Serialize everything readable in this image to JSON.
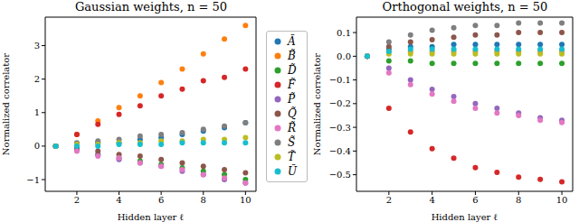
{
  "chart_data": [
    {
      "type": "scatter",
      "title": "Gaussian weights, n = 50",
      "x_label": "Hidden layer ℓ",
      "y_label": "Normalized correlator",
      "x": [
        1,
        2,
        3,
        4,
        5,
        6,
        7,
        8,
        9,
        10
      ],
      "xlim": [
        0.5,
        10.5
      ],
      "xticks": [
        2,
        4,
        6,
        8,
        10
      ],
      "ylim": [
        -1.35,
        3.85
      ],
      "yticks": [
        {
          "value": -1,
          "label": "−1"
        },
        0,
        1,
        2,
        3
      ],
      "legend": "right",
      "marker": "circle",
      "series": [
        {
          "name": "Ã",
          "color": "#1f77b4",
          "values": [
            0,
            0.05,
            0.1,
            0.1,
            0.2,
            0.25,
            0.35,
            0.45,
            0.55,
            0.7
          ]
        },
        {
          "name": "B̃",
          "color": "#ff7f0e",
          "values": [
            0,
            0.35,
            0.75,
            1.15,
            1.5,
            1.9,
            2.3,
            2.75,
            3.2,
            3.6
          ]
        },
        {
          "name": "D̃",
          "color": "#2ca02c",
          "values": [
            0,
            -0.1,
            -0.25,
            -0.35,
            -0.45,
            -0.55,
            -0.65,
            -0.75,
            -0.85,
            -1.0
          ]
        },
        {
          "name": "F̃",
          "color": "#d62728",
          "values": [
            0,
            0.35,
            0.65,
            0.95,
            1.2,
            1.5,
            1.7,
            1.95,
            2.05,
            2.3
          ]
        },
        {
          "name": "P̃",
          "color": "#9467bd",
          "values": [
            0,
            -0.1,
            -0.25,
            -0.4,
            -0.5,
            -0.6,
            -0.75,
            -0.85,
            -1.0,
            -1.1
          ]
        },
        {
          "name": "Q̃",
          "color": "#8c564b",
          "values": [
            0,
            -0.05,
            -0.15,
            -0.25,
            -0.3,
            -0.4,
            -0.5,
            -0.6,
            -0.7,
            -0.8
          ]
        },
        {
          "name": "R̃",
          "color": "#e377c2",
          "values": [
            0,
            -0.15,
            -0.3,
            -0.35,
            -0.5,
            -0.6,
            -0.7,
            -0.85,
            -0.95,
            -1.1
          ]
        },
        {
          "name": "S̃",
          "color": "#7f7f7f",
          "values": [
            0,
            0.1,
            0.15,
            0.2,
            0.3,
            0.35,
            0.4,
            0.5,
            0.6,
            0.7
          ]
        },
        {
          "name": "T̃",
          "color": "#bcbd22",
          "values": [
            0,
            0.05,
            0.05,
            0.1,
            0.1,
            0.15,
            0.15,
            0.2,
            0.2,
            0.25
          ]
        },
        {
          "name": "Ũ",
          "color": "#17becf",
          "values": [
            0,
            0.0,
            0.0,
            0.05,
            0.05,
            0.05,
            0.1,
            0.1,
            0.1,
            0.1
          ]
        }
      ]
    },
    {
      "type": "scatter",
      "title": "Orthogonal weights, n = 50",
      "x_label": "Hidden layer ℓ",
      "y_label": "Normalized correlator",
      "x": [
        1,
        2,
        3,
        4,
        5,
        6,
        7,
        8,
        9,
        10
      ],
      "xlim": [
        0.5,
        10.5
      ],
      "xticks": [
        2,
        4,
        6,
        8,
        10
      ],
      "ylim": [
        -0.57,
        0.165
      ],
      "yticks": [
        {
          "value": -0.5,
          "label": "−0.5"
        },
        {
          "value": -0.4,
          "label": "−0.4"
        },
        {
          "value": -0.3,
          "label": "−0.3"
        },
        {
          "value": -0.2,
          "label": "−0.2"
        },
        {
          "value": -0.1,
          "label": "−0.1"
        },
        {
          "value": 0,
          "label": "0.0"
        },
        0.1
      ],
      "marker": "circle",
      "series": [
        {
          "name": "Ã",
          "color": "#1f77b4",
          "values": [
            0,
            0.03,
            0.04,
            0.04,
            0.05,
            0.05,
            0.05,
            0.05,
            0.05,
            0.05
          ]
        },
        {
          "name": "B̃",
          "color": "#ff7f0e",
          "values": [
            0,
            0.02,
            0.02,
            0.02,
            0.02,
            0.02,
            0.02,
            0.02,
            0.02,
            0.02
          ]
        },
        {
          "name": "D̃",
          "color": "#2ca02c",
          "values": [
            0,
            -0.02,
            -0.02,
            -0.03,
            -0.03,
            -0.03,
            -0.03,
            -0.03,
            -0.03,
            -0.03
          ]
        },
        {
          "name": "F̃",
          "color": "#d62728",
          "values": [
            0,
            -0.22,
            -0.32,
            -0.39,
            -0.43,
            -0.47,
            -0.49,
            -0.51,
            -0.52,
            -0.53
          ]
        },
        {
          "name": "P̃",
          "color": "#9467bd",
          "values": [
            0,
            -0.05,
            -0.1,
            -0.14,
            -0.17,
            -0.2,
            -0.22,
            -0.24,
            -0.26,
            -0.27
          ]
        },
        {
          "name": "Q̃",
          "color": "#8c564b",
          "values": [
            0,
            0.04,
            0.06,
            0.07,
            0.08,
            0.09,
            0.09,
            0.1,
            0.1,
            0.1
          ]
        },
        {
          "name": "R̃",
          "color": "#e377c2",
          "values": [
            0,
            -0.07,
            -0.12,
            -0.16,
            -0.19,
            -0.22,
            -0.24,
            -0.25,
            -0.27,
            -0.28
          ]
        },
        {
          "name": "S̃",
          "color": "#7f7f7f",
          "values": [
            0,
            0.06,
            0.09,
            0.11,
            0.12,
            0.13,
            0.13,
            0.14,
            0.14,
            0.14
          ]
        },
        {
          "name": "T̃",
          "color": "#bcbd22",
          "values": [
            0,
            0.01,
            0.01,
            0.01,
            0.01,
            0.01,
            0.01,
            0.01,
            0.01,
            0.01
          ]
        },
        {
          "name": "Ũ",
          "color": "#17becf",
          "values": [
            0,
            0.02,
            0.03,
            0.03,
            0.03,
            0.03,
            0.03,
            0.03,
            0.03,
            0.03
          ]
        }
      ]
    }
  ]
}
